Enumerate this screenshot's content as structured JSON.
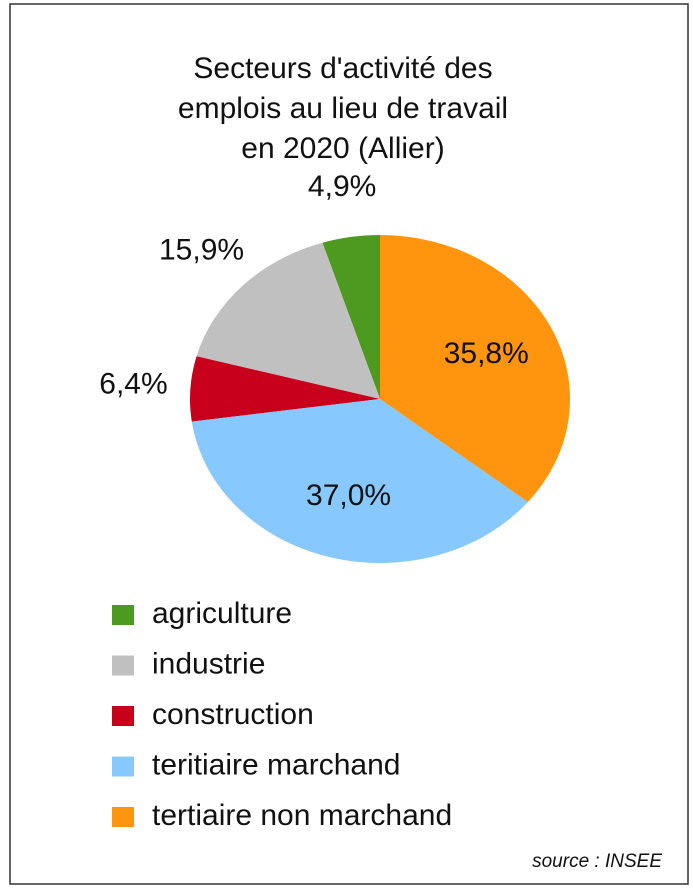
{
  "chart_data": {
    "type": "pie",
    "title": [
      "Secteurs d'activité des",
      "emplois au lieu de travail",
      "en 2020 (Allier)"
    ],
    "categories": [
      "agriculture",
      "industrie",
      "construction",
      "teritiaire marchand",
      "tertiaire non marchand"
    ],
    "values": [
      4.9,
      15.9,
      6.4,
      37.0,
      35.8
    ],
    "value_labels": [
      "4,9%",
      "15,9%",
      "6,4%",
      "37,0%",
      "35,8%"
    ],
    "colors": [
      "#4e9a21",
      "#c0c0c0",
      "#c9001b",
      "#87c8ff",
      "#ff950e"
    ],
    "source": "source : INSEE"
  }
}
